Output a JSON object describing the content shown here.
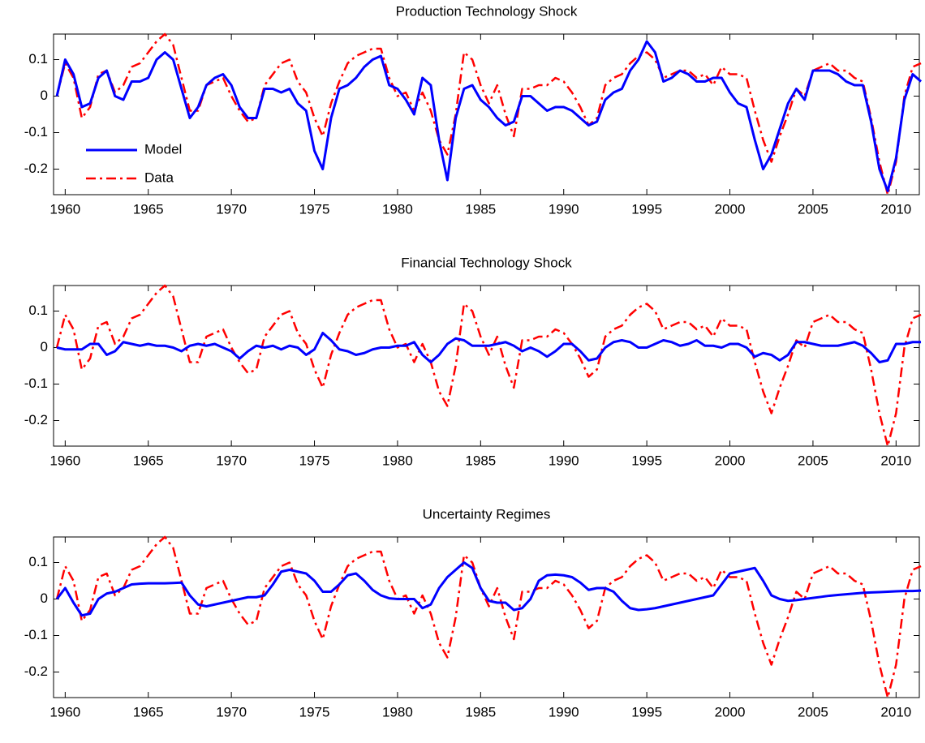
{
  "chart_data": [
    {
      "type": "line",
      "title": "Production Technology Shock",
      "legend": "lower left",
      "xlim": [
        1959.3,
        2011.4
      ],
      "ylim": [
        -0.27,
        0.17
      ],
      "xticks": [
        1960,
        1965,
        1970,
        1975,
        1980,
        1985,
        1990,
        1995,
        2000,
        2005,
        2010
      ],
      "yticks": [
        -0.2,
        -0.1,
        0,
        0.1
      ],
      "x": [
        1959.5,
        1960,
        1960.5,
        1961,
        1961.5,
        1962,
        1962.5,
        1963,
        1963.5,
        1964,
        1964.5,
        1965,
        1965.5,
        1966,
        1966.5,
        1967,
        1967.5,
        1968,
        1968.5,
        1969,
        1969.5,
        1970,
        1970.5,
        1971,
        1971.5,
        1972,
        1972.5,
        1973,
        1973.5,
        1974,
        1974.5,
        1975,
        1975.5,
        1976,
        1976.5,
        1977,
        1977.5,
        1978,
        1978.5,
        1979,
        1979.5,
        1980,
        1980.5,
        1981,
        1981.5,
        1982,
        1982.5,
        1983,
        1983.5,
        1984,
        1984.5,
        1985,
        1985.5,
        1986,
        1986.5,
        1987,
        1987.5,
        1988,
        1988.5,
        1989,
        1989.5,
        1990,
        1990.5,
        1991,
        1991.5,
        1992,
        1992.5,
        1993,
        1993.5,
        1994,
        1994.5,
        1995,
        1995.5,
        1996,
        1996.5,
        1997,
        1997.5,
        1998,
        1998.5,
        1999,
        1999.5,
        2000,
        2000.5,
        2001,
        2001.5,
        2002,
        2002.5,
        2003,
        2003.5,
        2004,
        2004.5,
        2005,
        2005.5,
        2006,
        2006.5,
        2007,
        2007.5,
        2008,
        2008.5,
        2009,
        2009.5,
        2010,
        2010.5,
        2011,
        2011.5
      ],
      "series": [
        {
          "name": "Model",
          "color": "#0000ff",
          "style": "solid",
          "values": [
            0,
            0.1,
            0.06,
            -0.03,
            -0.02,
            0.05,
            0.07,
            0.0,
            -0.01,
            0.04,
            0.04,
            0.05,
            0.1,
            0.12,
            0.1,
            0.02,
            -0.06,
            -0.03,
            0.03,
            0.05,
            0.06,
            0.03,
            -0.03,
            -0.06,
            -0.06,
            0.02,
            0.02,
            0.01,
            0.02,
            -0.02,
            -0.04,
            -0.15,
            -0.2,
            -0.06,
            0.02,
            0.03,
            0.05,
            0.08,
            0.1,
            0.11,
            0.03,
            0.02,
            -0.01,
            -0.05,
            0.05,
            0.03,
            -0.12,
            -0.23,
            -0.06,
            0.02,
            0.03,
            -0.01,
            -0.03,
            -0.06,
            -0.08,
            -0.07,
            0.0,
            0.0,
            -0.02,
            -0.04,
            -0.03,
            -0.03,
            -0.04,
            -0.06,
            -0.08,
            -0.07,
            -0.01,
            0.01,
            0.02,
            0.07,
            0.1,
            0.15,
            0.12,
            0.04,
            0.05,
            0.07,
            0.06,
            0.04,
            0.04,
            0.05,
            0.05,
            0.01,
            -0.02,
            -0.03,
            -0.12,
            -0.2,
            -0.16,
            -0.09,
            -0.02,
            0.02,
            -0.01,
            0.07,
            0.07,
            0.07,
            0.06,
            0.04,
            0.03,
            0.03,
            -0.07,
            -0.2,
            -0.26,
            -0.17,
            -0.01,
            0.06,
            0.04
          ]
        },
        {
          "name": "Data",
          "color": "#ff0000",
          "style": "dash-dot",
          "values": [
            0,
            0.09,
            0.05,
            -0.06,
            -0.03,
            0.06,
            0.07,
            0.01,
            0.03,
            0.08,
            0.09,
            0.12,
            0.15,
            0.17,
            0.14,
            0.05,
            -0.04,
            -0.04,
            0.03,
            0.04,
            0.05,
            0.0,
            -0.04,
            -0.07,
            -0.06,
            0.03,
            0.06,
            0.09,
            0.1,
            0.04,
            0.01,
            -0.06,
            -0.11,
            -0.02,
            0.04,
            0.09,
            0.11,
            0.12,
            0.13,
            0.13,
            0.05,
            0.0,
            0.01,
            -0.04,
            0.01,
            -0.04,
            -0.12,
            -0.16,
            -0.05,
            0.12,
            0.1,
            0.03,
            -0.02,
            0.03,
            -0.05,
            -0.11,
            0.02,
            0.02,
            0.03,
            0.03,
            0.05,
            0.04,
            0.01,
            -0.03,
            -0.08,
            -0.06,
            0.03,
            0.05,
            0.06,
            0.09,
            0.11,
            0.12,
            0.1,
            0.05,
            0.06,
            0.07,
            0.07,
            0.05,
            0.06,
            0.03,
            0.08,
            0.06,
            0.06,
            0.05,
            -0.04,
            -0.12,
            -0.18,
            -0.11,
            -0.05,
            0.02,
            0.0,
            0.07,
            0.08,
            0.09,
            0.07,
            0.07,
            0.05,
            0.04,
            -0.06,
            -0.18,
            -0.27,
            -0.18,
            0.0,
            0.08,
            0.09
          ]
        }
      ]
    },
    {
      "type": "line",
      "title": "Financial Technology Shock",
      "xlim": [
        1959.3,
        2011.4
      ],
      "ylim": [
        -0.27,
        0.17
      ],
      "xticks": [
        1960,
        1965,
        1970,
        1975,
        1980,
        1985,
        1990,
        1995,
        2000,
        2005,
        2010
      ],
      "yticks": [
        -0.2,
        -0.1,
        0,
        0.1
      ],
      "x": [
        1959.5,
        1960,
        1960.5,
        1961,
        1961.5,
        1962,
        1962.5,
        1963,
        1963.5,
        1964,
        1964.5,
        1965,
        1965.5,
        1966,
        1966.5,
        1967,
        1967.5,
        1968,
        1968.5,
        1969,
        1969.5,
        1970,
        1970.5,
        1971,
        1971.5,
        1972,
        1972.5,
        1973,
        1973.5,
        1974,
        1974.5,
        1975,
        1975.5,
        1976,
        1976.5,
        1977,
        1977.5,
        1978,
        1978.5,
        1979,
        1979.5,
        1980,
        1980.5,
        1981,
        1981.5,
        1982,
        1982.5,
        1983,
        1983.5,
        1984,
        1984.5,
        1985,
        1985.5,
        1986,
        1986.5,
        1987,
        1987.5,
        1988,
        1988.5,
        1989,
        1989.5,
        1990,
        1990.5,
        1991,
        1991.5,
        1992,
        1992.5,
        1993,
        1993.5,
        1994,
        1994.5,
        1995,
        1995.5,
        1996,
        1996.5,
        1997,
        1997.5,
        1998,
        1998.5,
        1999,
        1999.5,
        2000,
        2000.5,
        2001,
        2001.5,
        2002,
        2002.5,
        2003,
        2003.5,
        2004,
        2004.5,
        2005,
        2005.5,
        2006,
        2006.5,
        2007,
        2007.5,
        2008,
        2008.5,
        2009,
        2009.5,
        2010,
        2010.5,
        2011,
        2011.5
      ],
      "series": [
        {
          "name": "Model",
          "color": "#0000ff",
          "style": "solid",
          "values": [
            0,
            -0.005,
            -0.005,
            -0.005,
            0.01,
            0.01,
            -0.02,
            -0.01,
            0.015,
            0.01,
            0.005,
            0.01,
            0.005,
            0.005,
            0.0,
            -0.01,
            0.005,
            0.01,
            0.005,
            0.01,
            0.0,
            -0.01,
            -0.03,
            -0.01,
            0.005,
            0.0,
            0.005,
            -0.005,
            0.005,
            0.0,
            -0.02,
            -0.005,
            0.04,
            0.02,
            -0.005,
            -0.01,
            -0.02,
            -0.015,
            -0.005,
            0.0,
            0.0,
            0.005,
            0.005,
            0.015,
            -0.02,
            -0.04,
            -0.02,
            0.01,
            0.025,
            0.02,
            0.005,
            0.005,
            0.005,
            0.01,
            0.015,
            0.005,
            -0.01,
            0.0,
            -0.01,
            -0.025,
            -0.01,
            0.01,
            0.01,
            -0.01,
            -0.035,
            -0.03,
            0.0,
            0.015,
            0.02,
            0.015,
            0.0,
            0.0,
            0.01,
            0.02,
            0.015,
            0.005,
            0.01,
            0.02,
            0.005,
            0.005,
            0.0,
            0.01,
            0.01,
            0.0,
            -0.025,
            -0.015,
            -0.02,
            -0.035,
            -0.02,
            0.015,
            0.015,
            0.01,
            0.005,
            0.005,
            0.005,
            0.01,
            0.015,
            0.005,
            -0.015,
            -0.04,
            -0.035,
            0.01,
            0.01,
            0.015,
            0.015
          ]
        },
        {
          "name": "Data",
          "color": "#ff0000",
          "style": "dash-dot",
          "values": [
            0,
            0.09,
            0.05,
            -0.06,
            -0.03,
            0.06,
            0.07,
            0.01,
            0.03,
            0.08,
            0.09,
            0.12,
            0.15,
            0.17,
            0.14,
            0.05,
            -0.04,
            -0.04,
            0.03,
            0.04,
            0.05,
            0.0,
            -0.04,
            -0.07,
            -0.06,
            0.03,
            0.06,
            0.09,
            0.1,
            0.04,
            0.01,
            -0.06,
            -0.11,
            -0.02,
            0.04,
            0.09,
            0.11,
            0.12,
            0.13,
            0.13,
            0.05,
            0.0,
            0.01,
            -0.04,
            0.01,
            -0.04,
            -0.12,
            -0.16,
            -0.05,
            0.12,
            0.1,
            0.03,
            -0.02,
            0.03,
            -0.05,
            -0.11,
            0.02,
            0.02,
            0.03,
            0.03,
            0.05,
            0.04,
            0.01,
            -0.03,
            -0.08,
            -0.06,
            0.03,
            0.05,
            0.06,
            0.09,
            0.11,
            0.12,
            0.1,
            0.05,
            0.06,
            0.07,
            0.07,
            0.05,
            0.06,
            0.03,
            0.08,
            0.06,
            0.06,
            0.05,
            -0.04,
            -0.12,
            -0.18,
            -0.11,
            -0.05,
            0.02,
            0.0,
            0.07,
            0.08,
            0.09,
            0.07,
            0.07,
            0.05,
            0.04,
            -0.06,
            -0.18,
            -0.27,
            -0.18,
            0.0,
            0.08,
            0.09
          ]
        }
      ]
    },
    {
      "type": "line",
      "title": "Uncertainty Regimes",
      "xlim": [
        1959.3,
        2011.4
      ],
      "ylim": [
        -0.27,
        0.17
      ],
      "xticks": [
        1960,
        1965,
        1970,
        1975,
        1980,
        1985,
        1990,
        1995,
        2000,
        2005,
        2010
      ],
      "yticks": [
        -0.2,
        -0.1,
        0,
        0.1
      ],
      "x": [
        1959.5,
        1960,
        1960.5,
        1961,
        1961.5,
        1962,
        1962.5,
        1963,
        1963.5,
        1964,
        1964.5,
        1965,
        1965.5,
        1966,
        1966.5,
        1967,
        1967.5,
        1968,
        1968.5,
        1969,
        1969.5,
        1970,
        1970.5,
        1971,
        1971.5,
        1972,
        1972.5,
        1973,
        1973.5,
        1974,
        1974.5,
        1975,
        1975.5,
        1976,
        1976.5,
        1977,
        1977.5,
        1978,
        1978.5,
        1979,
        1979.5,
        1980,
        1980.5,
        1981,
        1981.5,
        1982,
        1982.5,
        1983,
        1983.5,
        1984,
        1984.5,
        1985,
        1985.5,
        1986,
        1986.5,
        1987,
        1987.5,
        1988,
        1988.5,
        1989,
        1989.5,
        1990,
        1990.5,
        1991,
        1991.5,
        1992,
        1992.5,
        1993,
        1993.5,
        1994,
        1994.5,
        1995,
        1995.5,
        1996,
        1996.5,
        1997,
        1997.5,
        1998,
        1998.5,
        1999,
        1999.5,
        2000,
        2000.5,
        2001,
        2001.5,
        2002,
        2002.5,
        2003,
        2003.5,
        2004,
        2004.5,
        2005,
        2005.5,
        2006,
        2006.5,
        2007,
        2007.5,
        2008,
        2008.5,
        2009,
        2009.5,
        2010,
        2010.5,
        2011,
        2011.5
      ],
      "series": [
        {
          "name": "Model",
          "color": "#0000ff",
          "style": "solid",
          "values": [
            0,
            0.03,
            -0.01,
            -0.045,
            -0.04,
            0.0,
            0.015,
            0.02,
            0.03,
            0.04,
            0.042,
            0.043,
            0.043,
            0.043,
            0.044,
            0.045,
            0.01,
            -0.015,
            -0.02,
            -0.015,
            -0.01,
            -0.005,
            0.0,
            0.005,
            0.005,
            0.01,
            0.04,
            0.075,
            0.08,
            0.075,
            0.07,
            0.05,
            0.02,
            0.02,
            0.04,
            0.065,
            0.07,
            0.05,
            0.025,
            0.01,
            0.002,
            0.0,
            0.0,
            0.0,
            -0.025,
            -0.015,
            0.03,
            0.06,
            0.08,
            0.1,
            0.085,
            0.03,
            -0.005,
            -0.01,
            -0.01,
            -0.03,
            -0.025,
            0.0,
            0.05,
            0.065,
            0.067,
            0.065,
            0.06,
            0.045,
            0.025,
            0.03,
            0.03,
            0.02,
            -0.005,
            -0.025,
            -0.03,
            -0.028,
            -0.025,
            -0.02,
            -0.015,
            -0.01,
            -0.005,
            0.0,
            0.005,
            0.01,
            0.04,
            0.07,
            0.075,
            0.08,
            0.085,
            0.05,
            0.01,
            0.0,
            -0.005,
            -0.003,
            0.0,
            0.003,
            0.006,
            0.009,
            0.011,
            0.013,
            0.015,
            0.017,
            0.018,
            0.019,
            0.02,
            0.021,
            0.022,
            0.022,
            0.023
          ]
        },
        {
          "name": "Data",
          "color": "#ff0000",
          "style": "dash-dot",
          "values": [
            0,
            0.09,
            0.05,
            -0.06,
            -0.03,
            0.06,
            0.07,
            0.01,
            0.03,
            0.08,
            0.09,
            0.12,
            0.15,
            0.17,
            0.14,
            0.05,
            -0.04,
            -0.04,
            0.03,
            0.04,
            0.05,
            0.0,
            -0.04,
            -0.07,
            -0.06,
            0.03,
            0.06,
            0.09,
            0.1,
            0.04,
            0.01,
            -0.06,
            -0.11,
            -0.02,
            0.04,
            0.09,
            0.11,
            0.12,
            0.13,
            0.13,
            0.05,
            0.0,
            0.01,
            -0.04,
            0.01,
            -0.04,
            -0.12,
            -0.16,
            -0.05,
            0.12,
            0.1,
            0.03,
            -0.02,
            0.03,
            -0.05,
            -0.11,
            0.02,
            0.02,
            0.03,
            0.03,
            0.05,
            0.04,
            0.01,
            -0.03,
            -0.08,
            -0.06,
            0.03,
            0.05,
            0.06,
            0.09,
            0.11,
            0.12,
            0.1,
            0.05,
            0.06,
            0.07,
            0.07,
            0.05,
            0.06,
            0.03,
            0.08,
            0.06,
            0.06,
            0.05,
            -0.04,
            -0.12,
            -0.18,
            -0.11,
            -0.05,
            0.02,
            0.0,
            0.07,
            0.08,
            0.09,
            0.07,
            0.07,
            0.05,
            0.04,
            -0.06,
            -0.18,
            -0.27,
            -0.18,
            0.0,
            0.08,
            0.09
          ]
        }
      ]
    }
  ]
}
